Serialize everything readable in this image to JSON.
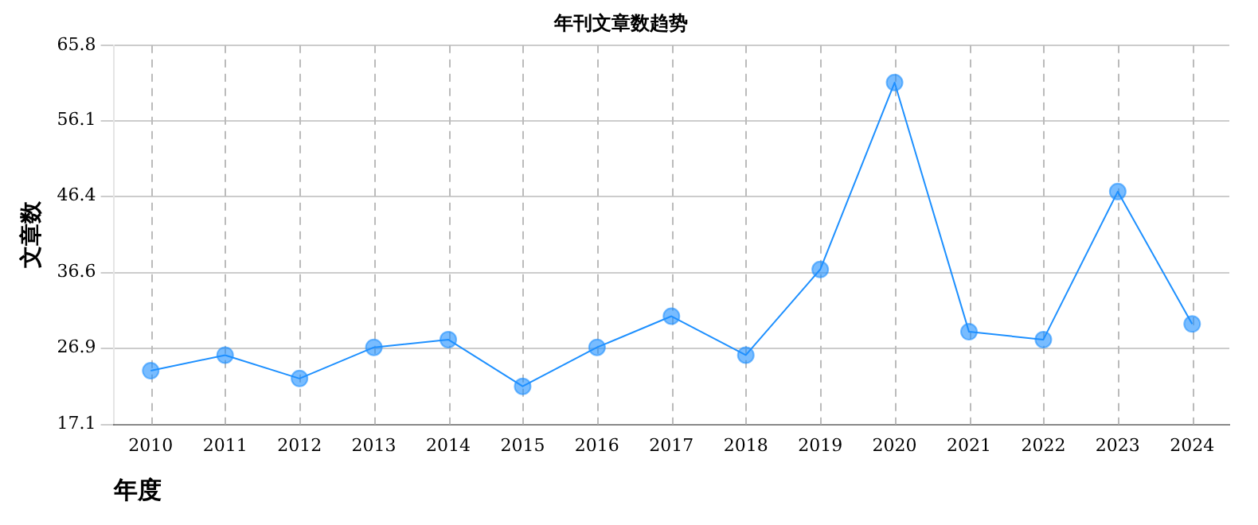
{
  "chart_data": {
    "type": "line",
    "title": "年刊文章数趋势",
    "xlabel": "年度",
    "ylabel": "文章数",
    "categories": [
      "2010",
      "2011",
      "2012",
      "2013",
      "2014",
      "2015",
      "2016",
      "2017",
      "2018",
      "2019",
      "2020",
      "2021",
      "2022",
      "2023",
      "2024"
    ],
    "series": [
      {
        "color": "#1e90ff",
        "values": [
          24,
          26,
          23,
          27,
          28,
          22,
          27,
          31,
          26,
          37,
          61,
          29,
          28,
          47,
          30
        ]
      }
    ],
    "ylim": [
      17.1,
      65.8
    ],
    "yticks": [
      17.1,
      26.9,
      36.6,
      46.4,
      56.1,
      65.8
    ],
    "grid": true,
    "legend": false,
    "marker": "circle",
    "line_style": "solid"
  }
}
